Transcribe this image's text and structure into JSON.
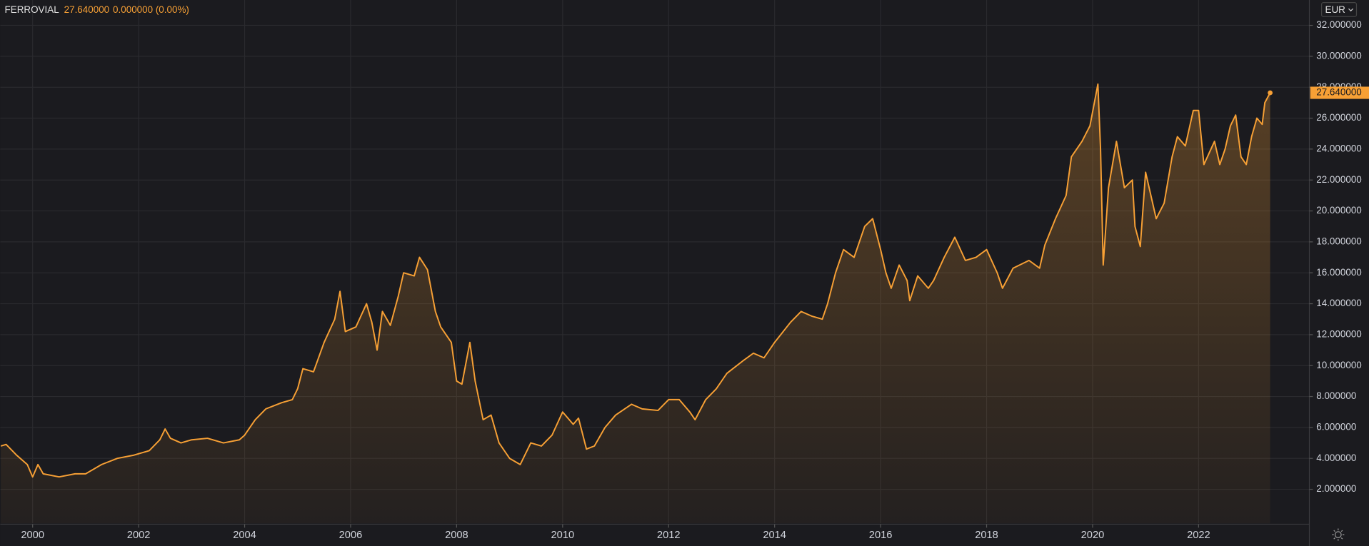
{
  "header": {
    "symbol": "FERROVIAL",
    "change": "0.000000 (0.00%)",
    "currency": "EUR"
  },
  "chart_data": {
    "type": "area",
    "color": "#f7a035",
    "grid": true,
    "xlim": [
      1999.39,
      2024.09
    ],
    "ylim": [
      -0.2,
      33.64
    ],
    "xticks": [
      2000,
      2002,
      2004,
      2006,
      2008,
      2010,
      2012,
      2014,
      2016,
      2018,
      2020,
      2022
    ],
    "yticks": [
      {
        "value": 2,
        "label": "2.000000"
      },
      {
        "value": 4,
        "label": "4.000000"
      },
      {
        "value": 6,
        "label": "6.000000"
      },
      {
        "value": 8,
        "label": "8.000000"
      },
      {
        "value": 10,
        "label": "10.000000"
      },
      {
        "value": 12,
        "label": "12.000000"
      },
      {
        "value": 14,
        "label": "14.000000"
      },
      {
        "value": 16,
        "label": "16.000000"
      },
      {
        "value": 18,
        "label": "18.000000"
      },
      {
        "value": 20,
        "label": "20.000000"
      },
      {
        "value": 22,
        "label": "22.000000"
      },
      {
        "value": 24,
        "label": "24.000000"
      },
      {
        "value": 26,
        "label": "26.000000"
      },
      {
        "value": 28,
        "label": "28.000000"
      },
      {
        "value": 30,
        "label": "30.000000"
      },
      {
        "value": 32,
        "label": "32.000000"
      }
    ],
    "last": {
      "value": 27.64,
      "label": "27.640000"
    },
    "series": [
      {
        "name": "FERROVIAL",
        "color": "#f7a035",
        "x": [
          1999.4,
          1999.5,
          1999.7,
          1999.9,
          2000.0,
          2000.1,
          2000.2,
          2000.5,
          2000.8,
          2001.0,
          2001.3,
          2001.6,
          2001.9,
          2002.2,
          2002.4,
          2002.5,
          2002.6,
          2002.8,
          2003.0,
          2003.3,
          2003.6,
          2003.9,
          2004.0,
          2004.2,
          2004.4,
          2004.7,
          2004.9,
          2005.0,
          2005.1,
          2005.3,
          2005.5,
          2005.7,
          2005.8,
          2005.9,
          2006.1,
          2006.3,
          2006.4,
          2006.5,
          2006.6,
          2006.75,
          2006.9,
          2007.0,
          2007.2,
          2007.3,
          2007.45,
          2007.6,
          2007.7,
          2007.9,
          2008.0,
          2008.1,
          2008.25,
          2008.35,
          2008.5,
          2008.65,
          2008.8,
          2009.0,
          2009.2,
          2009.4,
          2009.6,
          2009.8,
          2010.0,
          2010.2,
          2010.3,
          2010.45,
          2010.6,
          2010.8,
          2011.0,
          2011.3,
          2011.5,
          2011.8,
          2012.0,
          2012.2,
          2012.4,
          2012.5,
          2012.7,
          2012.9,
          2013.1,
          2013.4,
          2013.6,
          2013.8,
          2014.0,
          2014.3,
          2014.5,
          2014.7,
          2014.9,
          2015.0,
          2015.15,
          2015.3,
          2015.5,
          2015.7,
          2015.85,
          2016.0,
          2016.1,
          2016.2,
          2016.35,
          2016.5,
          2016.55,
          2016.7,
          2016.9,
          2017.0,
          2017.2,
          2017.4,
          2017.6,
          2017.8,
          2018.0,
          2018.2,
          2018.3,
          2018.5,
          2018.8,
          2019.0,
          2019.1,
          2019.3,
          2019.5,
          2019.6,
          2019.8,
          2019.95,
          2020.1,
          2020.15,
          2020.2,
          2020.3,
          2020.45,
          2020.6,
          2020.75,
          2020.8,
          2020.9,
          2021.0,
          2021.2,
          2021.35,
          2021.5,
          2021.6,
          2021.75,
          2021.9,
          2022.0,
          2022.1,
          2022.3,
          2022.4,
          2022.5,
          2022.6,
          2022.7,
          2022.8,
          2022.9,
          2023.0,
          2023.1,
          2023.2,
          2023.25,
          2023.35
        ],
        "values": [
          4.8,
          4.9,
          4.2,
          3.6,
          2.8,
          3.6,
          3.0,
          2.8,
          3.0,
          3.0,
          3.6,
          4.0,
          4.2,
          4.5,
          5.2,
          5.9,
          5.3,
          5.0,
          5.2,
          5.3,
          5.0,
          5.2,
          5.5,
          6.5,
          7.2,
          7.6,
          7.8,
          8.5,
          9.8,
          9.6,
          11.5,
          13.0,
          14.8,
          12.2,
          12.5,
          14.0,
          12.8,
          11.0,
          13.5,
          12.6,
          14.5,
          16.0,
          15.8,
          17.0,
          16.2,
          13.5,
          12.5,
          11.5,
          9.0,
          8.8,
          11.5,
          9.0,
          6.5,
          6.8,
          5.0,
          4.0,
          3.6,
          5.0,
          4.8,
          5.5,
          7.0,
          6.2,
          6.6,
          4.6,
          4.8,
          6.0,
          6.8,
          7.5,
          7.2,
          7.1,
          7.8,
          7.8,
          7.0,
          6.5,
          7.8,
          8.5,
          9.5,
          10.3,
          10.8,
          10.5,
          11.5,
          12.8,
          13.5,
          13.2,
          13.0,
          14.0,
          16.0,
          17.5,
          17.0,
          19.0,
          19.5,
          17.5,
          16.0,
          15.0,
          16.5,
          15.5,
          14.2,
          15.8,
          15.0,
          15.5,
          17.0,
          18.3,
          16.8,
          17.0,
          17.5,
          16.0,
          15.0,
          16.3,
          16.8,
          16.3,
          17.8,
          19.5,
          21.0,
          23.5,
          24.5,
          25.5,
          28.2,
          24.0,
          16.5,
          21.5,
          24.5,
          21.5,
          22.0,
          19.0,
          17.7,
          22.5,
          19.5,
          20.5,
          23.5,
          24.8,
          24.2,
          26.5,
          26.5,
          23.0,
          24.5,
          23.0,
          24.0,
          25.5,
          26.2,
          23.5,
          23.0,
          24.8,
          26.0,
          25.6,
          27.0,
          27.64
        ]
      }
    ]
  }
}
